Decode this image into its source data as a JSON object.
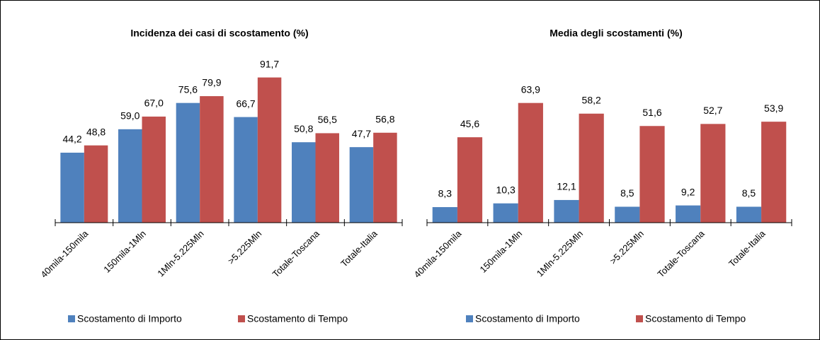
{
  "chart_data": [
    {
      "type": "bar",
      "title": "Incidenza dei casi di scostamento  (%)",
      "categories": [
        "40mila-150mila",
        "150mila-1Mln",
        "1Mln-5.225Mln",
        ">5.225Mln",
        "Totale-Toscana",
        "Totale-Italia"
      ],
      "series": [
        {
          "name": "Scostamento di Importo",
          "color": "#4f81bd",
          "values": [
            44.2,
            59.0,
            75.6,
            66.7,
            50.8,
            47.7
          ],
          "value_labels": [
            "44,2",
            "59,0",
            "75,6",
            "66,7",
            "50,8",
            "47,7"
          ]
        },
        {
          "name": "Scostamento di Tempo",
          "color": "#c0504d",
          "values": [
            48.8,
            67.0,
            79.9,
            91.7,
            56.5,
            56.8
          ],
          "value_labels": [
            "48,8",
            "67,0",
            "79,9",
            "91,7",
            "56,5",
            "56,8"
          ]
        }
      ],
      "ylim": [
        0,
        100
      ],
      "legend": "bottom"
    },
    {
      "type": "bar",
      "title": "Media degli scostamenti  (%)",
      "categories": [
        "40mila-150mila",
        "150mila-1Mln",
        "1Mln-5.225Mln",
        ">5.225Mln",
        "Totale-Toscana",
        "Totale-Italia"
      ],
      "series": [
        {
          "name": "Scostamento di Importo",
          "color": "#4f81bd",
          "values": [
            8.3,
            10.3,
            12.1,
            8.5,
            9.2,
            8.5
          ],
          "value_labels": [
            "8,3",
            "10,3",
            "12,1",
            "8,5",
            "9,2",
            "8,5"
          ]
        },
        {
          "name": "Scostamento di Tempo",
          "color": "#c0504d",
          "values": [
            45.6,
            63.9,
            58.2,
            51.6,
            52.7,
            53.9
          ],
          "value_labels": [
            "45,6",
            "63,9",
            "58,2",
            "51,6",
            "52,7",
            "53,9"
          ]
        }
      ],
      "ylim": [
        0,
        80
      ],
      "legend": "bottom"
    }
  ]
}
